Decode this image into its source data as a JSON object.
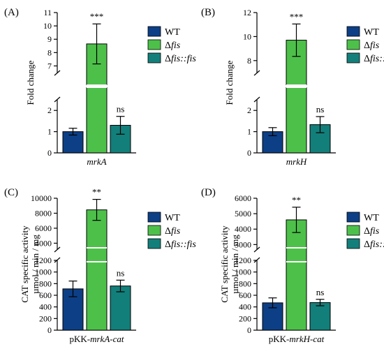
{
  "colors": {
    "wt": "#0d3f86",
    "dfis": "#4dc04a",
    "comp": "#137f7a",
    "axis": "#000000"
  },
  "chart_data": [
    {
      "panel_label": "(A)",
      "type": "bar",
      "ylabel": "Fold change",
      "xlabel_parts": [
        {
          "t": "mrkA",
          "i": true
        }
      ],
      "ylim_lower": [
        0,
        2.5
      ],
      "ylim_upper": [
        6.5,
        11
      ],
      "yticks_lower": [
        "0",
        "1",
        "2"
      ],
      "yticks_upper": [
        "7",
        "8",
        "9",
        "10",
        "11"
      ],
      "series": [
        {
          "legend_parts": [
            {
              "t": "WT",
              "i": false
            }
          ],
          "value": 1.0,
          "err": 0.16,
          "sig": ""
        },
        {
          "legend_parts": [
            {
              "t": "Δ",
              "i": false
            },
            {
              "t": "fis",
              "i": true
            }
          ],
          "value": 8.65,
          "err": 1.5,
          "sig": "***"
        },
        {
          "legend_parts": [
            {
              "t": "Δ",
              "i": false
            },
            {
              "t": "fis::fis",
              "i": true
            }
          ],
          "value": 1.3,
          "err": 0.42,
          "sig": "ns"
        }
      ]
    },
    {
      "panel_label": "(B)",
      "type": "bar",
      "ylabel": "Fold change",
      "xlabel_parts": [
        {
          "t": "mrkH",
          "i": true
        }
      ],
      "ylim_lower": [
        0,
        2.5
      ],
      "ylim_upper": [
        7,
        12
      ],
      "yticks_lower": [
        "0",
        "1",
        "2"
      ],
      "yticks_upper": [
        "8",
        "10",
        "12"
      ],
      "series": [
        {
          "legend_parts": [
            {
              "t": "WT",
              "i": false
            }
          ],
          "value": 1.0,
          "err": 0.19,
          "sig": ""
        },
        {
          "legend_parts": [
            {
              "t": "Δ",
              "i": false
            },
            {
              "t": "fis",
              "i": true
            }
          ],
          "value": 9.7,
          "err": 1.35,
          "sig": "***"
        },
        {
          "legend_parts": [
            {
              "t": "Δ",
              "i": false
            },
            {
              "t": "fis::fis",
              "i": true
            }
          ],
          "value": 1.33,
          "err": 0.38,
          "sig": "ns"
        }
      ]
    },
    {
      "panel_label": "(C)",
      "type": "bar",
      "ylabel": "CAT specific activity",
      "ylabel2": "µmol / min / mg",
      "xlabel_parts": [
        {
          "t": "pKK-",
          "i": false
        },
        {
          "t": "mrkA-cat",
          "i": true
        }
      ],
      "ylim_lower": [
        0,
        1200
      ],
      "ylim_upper": [
        3200,
        10000
      ],
      "yticks_lower": [
        "0",
        "200",
        "400",
        "600",
        "800",
        "1000",
        "1200"
      ],
      "yticks_upper": [
        "4000",
        "6000",
        "8000",
        "10000"
      ],
      "series": [
        {
          "legend_parts": [
            {
              "t": "WT",
              "i": false
            }
          ],
          "value": 710,
          "err": 135,
          "sig": ""
        },
        {
          "legend_parts": [
            {
              "t": "Δ",
              "i": false
            },
            {
              "t": "fis",
              "i": true
            }
          ],
          "value": 8450,
          "err": 1400,
          "sig": "**"
        },
        {
          "legend_parts": [
            {
              "t": "Δ",
              "i": false
            },
            {
              "t": "fis::fis",
              "i": true
            }
          ],
          "value": 760,
          "err": 100,
          "sig": "ns"
        }
      ]
    },
    {
      "panel_label": "(D)",
      "type": "bar",
      "ylabel": "CAT specific activity",
      "ylabel2": "µmol / min / mg",
      "xlabel_parts": [
        {
          "t": "pKK-",
          "i": false
        },
        {
          "t": "mrkH-cat",
          "i": true
        }
      ],
      "ylim_lower": [
        0,
        1200
      ],
      "ylim_upper": [
        2700,
        6000
      ],
      "yticks_lower": [
        "0",
        "200",
        "400",
        "600",
        "800",
        "1000",
        "1200"
      ],
      "yticks_upper": [
        "3000",
        "4000",
        "5000",
        "6000"
      ],
      "series": [
        {
          "legend_parts": [
            {
              "t": "WT",
              "i": false
            }
          ],
          "value": 470,
          "err": 85,
          "sig": ""
        },
        {
          "legend_parts": [
            {
              "t": "Δ",
              "i": false
            },
            {
              "t": "fis",
              "i": true
            }
          ],
          "value": 4600,
          "err": 820,
          "sig": "**"
        },
        {
          "legend_parts": [
            {
              "t": "Δ",
              "i": false
            },
            {
              "t": "fis::fis",
              "i": true
            }
          ],
          "value": 475,
          "err": 55,
          "sig": "ns"
        }
      ]
    }
  ]
}
